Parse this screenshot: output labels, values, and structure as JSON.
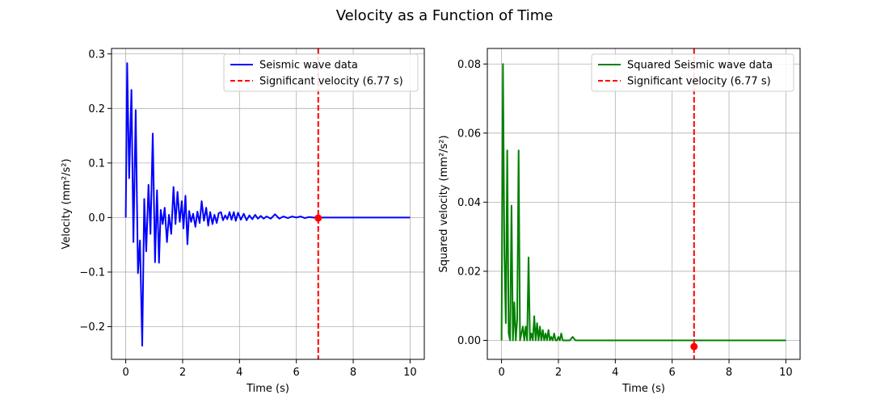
{
  "figure": {
    "title": "Velocity as a Function of Time"
  },
  "chart_data": [
    {
      "type": "line",
      "xlabel": "Time (s)",
      "ylabel": "Velocity (mm²/s²)",
      "xlim": [
        -0.5,
        10.5
      ],
      "ylim": [
        -0.26,
        0.31
      ],
      "xticks": [
        0,
        2,
        4,
        6,
        8,
        10
      ],
      "xtick_labels": [
        "0",
        "2",
        "4",
        "6",
        "8",
        "10"
      ],
      "yticks": [
        -0.2,
        -0.1,
        0.0,
        0.1,
        0.2,
        0.3
      ],
      "ytick_labels": [
        "−0.2",
        "−0.1",
        "0.0",
        "0.1",
        "0.2",
        "0.3"
      ],
      "grid": true,
      "legend_position": "upper right",
      "series": [
        {
          "name": "Seismic wave data",
          "color": "#0000ff",
          "style": "solid",
          "x": [
            0,
            0.05,
            0.12,
            0.2,
            0.27,
            0.35,
            0.43,
            0.5,
            0.58,
            0.65,
            0.72,
            0.8,
            0.87,
            0.95,
            1.03,
            1.1,
            1.17,
            1.23,
            1.3,
            1.37,
            1.45,
            1.52,
            1.6,
            1.68,
            1.75,
            1.82,
            1.9,
            1.97,
            2.03,
            2.1,
            2.17,
            2.23,
            2.3,
            2.37,
            2.45,
            2.52,
            2.6,
            2.67,
            2.75,
            2.83,
            2.9,
            2.97,
            3.05,
            3.12,
            3.2,
            3.27,
            3.35,
            3.42,
            3.5,
            3.57,
            3.65,
            3.72,
            3.8,
            3.87,
            3.95,
            4.05,
            4.15,
            4.25,
            4.35,
            4.45,
            4.55,
            4.65,
            4.75,
            4.85,
            4.95,
            5.1,
            5.25,
            5.4,
            5.55,
            5.7,
            5.85,
            6.0,
            6.15,
            6.3,
            6.45,
            6.6,
            6.77,
            7.0,
            7.3,
            7.6,
            7.9,
            8.2,
            8.5,
            8.8,
            9.1,
            9.4,
            9.7,
            10.0
          ],
          "y": [
            0.0,
            0.283,
            0.072,
            0.234,
            -0.045,
            0.197,
            -0.102,
            -0.042,
            -0.235,
            0.034,
            -0.062,
            0.06,
            -0.03,
            0.154,
            -0.082,
            0.05,
            -0.083,
            0.014,
            -0.012,
            0.018,
            -0.045,
            0.005,
            -0.03,
            0.056,
            -0.012,
            0.047,
            -0.008,
            0.03,
            -0.02,
            0.04,
            -0.049,
            0.012,
            -0.008,
            0.007,
            -0.017,
            0.011,
            -0.01,
            0.03,
            -0.006,
            0.018,
            -0.015,
            0.01,
            -0.012,
            0.005,
            -0.01,
            0.008,
            0.01,
            -0.005,
            0.004,
            -0.003,
            0.01,
            -0.004,
            0.01,
            -0.006,
            0.009,
            -0.004,
            0.007,
            -0.005,
            0.004,
            -0.003,
            0.005,
            -0.002,
            0.003,
            -0.002,
            0.002,
            -0.002,
            0.006,
            -0.002,
            0.002,
            -0.001,
            0.002,
            0.0,
            0.002,
            -0.001,
            0.001,
            0.0,
            0.0,
            0.0,
            0.0,
            0.0,
            0.0,
            0.0,
            0.0,
            0.0,
            0.0,
            0.0,
            0.0,
            0.0
          ]
        }
      ],
      "vline": {
        "x": 6.77,
        "color": "#ff0000",
        "style": "dashed",
        "name": "Significant velocity (6.77 s)"
      },
      "marker": {
        "x": 6.77,
        "y": -0.001,
        "color": "#ff0000"
      }
    },
    {
      "type": "line",
      "xlabel": "Time (s)",
      "ylabel": "Squared velocity (mm²/s²)",
      "xlim": [
        -0.5,
        10.5
      ],
      "ylim": [
        -0.0055,
        0.0845
      ],
      "xticks": [
        0,
        2,
        4,
        6,
        8,
        10
      ],
      "xtick_labels": [
        "0",
        "2",
        "4",
        "6",
        "8",
        "10"
      ],
      "yticks": [
        0.0,
        0.02,
        0.04,
        0.06,
        0.08
      ],
      "ytick_labels": [
        "0.00",
        "0.02",
        "0.04",
        "0.06",
        "0.08"
      ],
      "grid": true,
      "legend_position": "upper right",
      "series": [
        {
          "name": "Squared Seismic wave data",
          "color": "#008000",
          "style": "solid",
          "x": [
            0,
            0.05,
            0.1,
            0.15,
            0.2,
            0.25,
            0.3,
            0.35,
            0.4,
            0.45,
            0.5,
            0.55,
            0.6,
            0.65,
            0.7,
            0.75,
            0.8,
            0.85,
            0.9,
            0.95,
            1.0,
            1.05,
            1.1,
            1.15,
            1.2,
            1.25,
            1.3,
            1.35,
            1.4,
            1.45,
            1.5,
            1.55,
            1.6,
            1.65,
            1.7,
            1.75,
            1.8,
            1.85,
            1.9,
            1.95,
            2.0,
            2.05,
            2.1,
            2.15,
            2.2,
            2.3,
            2.4,
            2.5,
            2.6,
            2.7,
            2.8,
            2.9,
            3.0,
            3.1,
            3.2,
            3.3,
            3.4,
            3.6,
            3.8,
            4.0,
            4.3,
            4.6,
            5.0,
            5.5,
            6.0,
            6.77,
            7.5,
            8.5,
            10.0
          ],
          "y": [
            0.0,
            0.08,
            0.025,
            0.005,
            0.055,
            0.002,
            0.0,
            0.039,
            0.0,
            0.011,
            0.0,
            0.006,
            0.055,
            0.0,
            0.002,
            0.004,
            0.0,
            0.004,
            0.0,
            0.024,
            0.0,
            0.002,
            0.0,
            0.007,
            0.0,
            0.005,
            0.0,
            0.004,
            0.0,
            0.003,
            0.0,
            0.002,
            0.0,
            0.003,
            0.0,
            0.001,
            0.0,
            0.002,
            0.0,
            0.0,
            0.001,
            0.0,
            0.002,
            0.0,
            0.0,
            0.0,
            0.0,
            0.001,
            0.0,
            0.0,
            0.0,
            0.0,
            0.0,
            0.0,
            0.0,
            0.0,
            0.0,
            0.0,
            0.0,
            0.0,
            0.0,
            0.0,
            0.0,
            0.0,
            0.0,
            0.0,
            0.0,
            0.0,
            0.0
          ]
        }
      ],
      "vline": {
        "x": 6.77,
        "color": "#ff0000",
        "style": "dashed",
        "name": "Significant velocity (6.77 s)"
      },
      "marker": {
        "x": 6.77,
        "y": -0.0018,
        "color": "#ff0000"
      }
    }
  ]
}
